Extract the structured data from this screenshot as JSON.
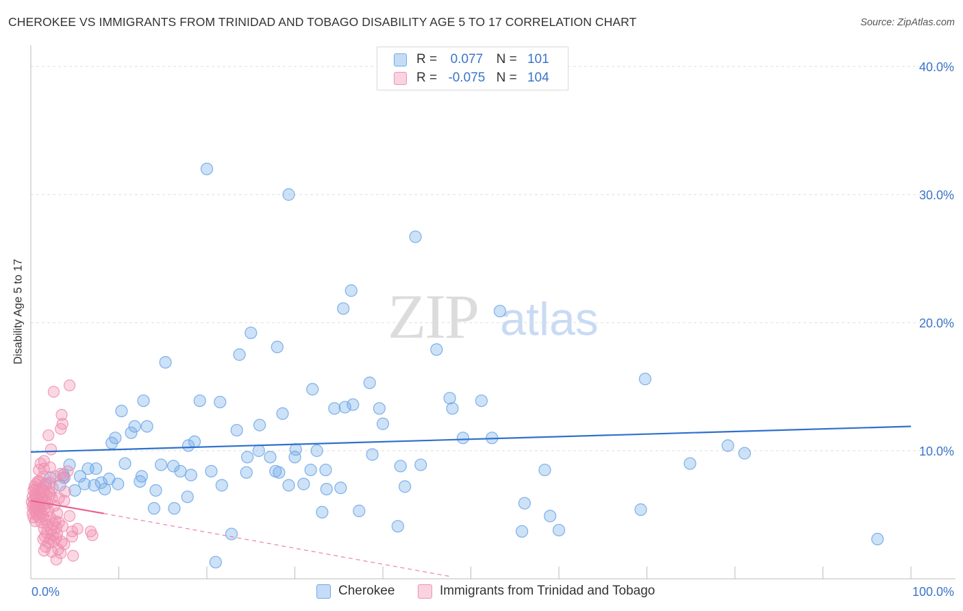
{
  "title": "CHEROKEE VS IMMIGRANTS FROM TRINIDAD AND TOBAGO DISABILITY AGE 5 TO 17 CORRELATION CHART",
  "source": "Source: ZipAtlas.com",
  "watermark": {
    "zip": "ZIP",
    "atlas": "atlas"
  },
  "legend": {
    "rows": [
      {
        "r_label": "R =",
        "r_value": "0.077",
        "n_label": "N =",
        "n_value": "101",
        "color": "#6fa8e8"
      },
      {
        "r_label": "R =",
        "r_value": "-0.075",
        "n_label": "N =",
        "n_value": "104",
        "color": "#f090b0"
      }
    ]
  },
  "bottom_legend": {
    "items": [
      {
        "label": "Cherokee",
        "color": "#6fa8e8"
      },
      {
        "label": "Immigrants from Trinidad and Tobago",
        "color": "#f090b0"
      }
    ]
  },
  "chart_data": {
    "type": "scatter",
    "title": "CHEROKEE VS IMMIGRANTS FROM TRINIDAD AND TOBAGO DISABILITY AGE 5 TO 17 CORRELATION CHART",
    "xlabel": "",
    "ylabel": "Disability Age 5 to 17",
    "xlim": [
      0,
      100
    ],
    "ylim": [
      0,
      40
    ],
    "x_tick_labels": [
      "0.0%",
      "100.0%"
    ],
    "y_ticks": [
      10,
      20,
      30,
      40
    ],
    "y_tick_labels": [
      "10.0%",
      "20.0%",
      "30.0%",
      "40.0%"
    ],
    "grid": true,
    "legend_position": "top-center",
    "series": [
      {
        "name": "Cherokee",
        "color": "#6fa8e8",
        "line_color": "#2e70cc",
        "trend": {
          "x": [
            0,
            100
          ],
          "y": [
            9.9,
            11.9
          ]
        },
        "trend_dashed": null,
        "points": [
          [
            20.0,
            32.0
          ],
          [
            29.3,
            30.0
          ],
          [
            43.7,
            26.7
          ],
          [
            36.4,
            22.5
          ],
          [
            35.5,
            21.1
          ],
          [
            53.3,
            20.9
          ],
          [
            25.0,
            19.2
          ],
          [
            28.0,
            18.1
          ],
          [
            46.1,
            17.9
          ],
          [
            23.7,
            17.5
          ],
          [
            15.3,
            16.9
          ],
          [
            69.8,
            15.6
          ],
          [
            38.5,
            15.3
          ],
          [
            32.0,
            14.8
          ],
          [
            47.6,
            14.1
          ],
          [
            12.8,
            13.9
          ],
          [
            19.2,
            13.9
          ],
          [
            21.5,
            13.8
          ],
          [
            51.2,
            13.9
          ],
          [
            36.6,
            13.6
          ],
          [
            35.7,
            13.4
          ],
          [
            34.5,
            13.3
          ],
          [
            39.6,
            13.3
          ],
          [
            47.9,
            13.3
          ],
          [
            10.3,
            13.1
          ],
          [
            28.6,
            12.9
          ],
          [
            26.0,
            12.0
          ],
          [
            40.0,
            12.1
          ],
          [
            13.2,
            11.9
          ],
          [
            11.8,
            11.9
          ],
          [
            23.4,
            11.6
          ],
          [
            11.4,
            11.4
          ],
          [
            9.6,
            11.0
          ],
          [
            49.1,
            11.0
          ],
          [
            52.4,
            11.0
          ],
          [
            9.2,
            10.6
          ],
          [
            18.6,
            10.7
          ],
          [
            17.9,
            10.4
          ],
          [
            79.2,
            10.4
          ],
          [
            25.9,
            10.0
          ],
          [
            30.1,
            10.1
          ],
          [
            32.5,
            10.0
          ],
          [
            81.1,
            9.8
          ],
          [
            30.0,
            9.5
          ],
          [
            24.6,
            9.5
          ],
          [
            27.2,
            9.5
          ],
          [
            38.8,
            9.7
          ],
          [
            10.7,
            9.0
          ],
          [
            4.4,
            8.9
          ],
          [
            74.9,
            9.0
          ],
          [
            14.8,
            8.9
          ],
          [
            16.2,
            8.8
          ],
          [
            42.0,
            8.8
          ],
          [
            7.4,
            8.6
          ],
          [
            31.8,
            8.5
          ],
          [
            33.5,
            8.5
          ],
          [
            17.0,
            8.4
          ],
          [
            20.5,
            8.4
          ],
          [
            24.5,
            8.3
          ],
          [
            28.2,
            8.3
          ],
          [
            58.4,
            8.5
          ],
          [
            3.7,
            8.1
          ],
          [
            2.2,
            7.9
          ],
          [
            3.8,
            7.9
          ],
          [
            8.9,
            7.8
          ],
          [
            12.4,
            7.6
          ],
          [
            6.1,
            7.4
          ],
          [
            8.0,
            7.5
          ],
          [
            3.3,
            7.3
          ],
          [
            21.7,
            7.3
          ],
          [
            7.2,
            7.3
          ],
          [
            29.3,
            7.3
          ],
          [
            35.2,
            7.1
          ],
          [
            42.5,
            7.2
          ],
          [
            5.0,
            6.9
          ],
          [
            8.4,
            7.0
          ],
          [
            14.2,
            6.9
          ],
          [
            33.6,
            7.0
          ],
          [
            17.8,
            6.4
          ],
          [
            56.1,
            5.9
          ],
          [
            14.0,
            5.5
          ],
          [
            16.3,
            5.5
          ],
          [
            33.1,
            5.2
          ],
          [
            37.3,
            5.3
          ],
          [
            69.3,
            5.4
          ],
          [
            59.0,
            4.9
          ],
          [
            41.7,
            4.1
          ],
          [
            60.0,
            3.8
          ],
          [
            55.8,
            3.7
          ],
          [
            22.8,
            3.5
          ],
          [
            96.2,
            3.1
          ],
          [
            21.0,
            1.3
          ],
          [
            27.8,
            8.4
          ],
          [
            44.3,
            8.9
          ],
          [
            31.0,
            7.4
          ],
          [
            6.5,
            8.6
          ],
          [
            1.7,
            7.4
          ],
          [
            18.2,
            8.1
          ],
          [
            12.6,
            8.0
          ],
          [
            9.9,
            7.4
          ],
          [
            5.6,
            8.0
          ]
        ]
      },
      {
        "name": "Immigrants from Trinidad and Tobago",
        "color": "#f090b0",
        "line_color": "#e8608f",
        "trend": {
          "x": [
            0,
            8.3
          ],
          "y": [
            6.1,
            5.1
          ]
        },
        "trend_dashed": {
          "x": [
            8.3,
            47.5
          ],
          "y": [
            5.1,
            0.2
          ]
        },
        "points": [
          [
            4.4,
            15.1
          ],
          [
            2.6,
            14.6
          ],
          [
            3.5,
            12.8
          ],
          [
            3.6,
            12.1
          ],
          [
            3.4,
            11.7
          ],
          [
            2.0,
            11.2
          ],
          [
            2.3,
            10.1
          ],
          [
            1.5,
            9.2
          ],
          [
            1.1,
            9.0
          ],
          [
            2.2,
            8.7
          ],
          [
            1.5,
            8.6
          ],
          [
            0.9,
            8.5
          ],
          [
            4.2,
            8.4
          ],
          [
            3.4,
            8.2
          ],
          [
            1.4,
            8.0
          ],
          [
            2.8,
            8.0
          ],
          [
            3.7,
            7.9
          ],
          [
            0.8,
            7.6
          ],
          [
            2.2,
            7.5
          ],
          [
            0.6,
            7.4
          ],
          [
            1.7,
            7.4
          ],
          [
            0.4,
            7.2
          ],
          [
            1.2,
            7.1
          ],
          [
            2.5,
            7.1
          ],
          [
            0.3,
            6.9
          ],
          [
            0.8,
            6.9
          ],
          [
            1.5,
            6.8
          ],
          [
            2.1,
            6.8
          ],
          [
            3.9,
            6.8
          ],
          [
            0.5,
            6.6
          ],
          [
            1.0,
            6.6
          ],
          [
            1.8,
            6.5
          ],
          [
            0.2,
            6.4
          ],
          [
            0.7,
            6.4
          ],
          [
            1.3,
            6.3
          ],
          [
            2.4,
            6.3
          ],
          [
            3.2,
            6.3
          ],
          [
            0.4,
            6.2
          ],
          [
            0.9,
            6.1
          ],
          [
            1.6,
            6.1
          ],
          [
            3.8,
            6.1
          ],
          [
            0.1,
            6.0
          ],
          [
            0.6,
            5.9
          ],
          [
            1.1,
            5.9
          ],
          [
            1.9,
            5.9
          ],
          [
            0.3,
            5.8
          ],
          [
            0.8,
            5.7
          ],
          [
            1.4,
            5.7
          ],
          [
            2.7,
            5.7
          ],
          [
            0.2,
            5.6
          ],
          [
            0.5,
            5.6
          ],
          [
            1.0,
            5.5
          ],
          [
            1.6,
            5.5
          ],
          [
            0.4,
            5.4
          ],
          [
            0.9,
            5.3
          ],
          [
            2.0,
            5.3
          ],
          [
            0.6,
            5.2
          ],
          [
            1.2,
            5.1
          ],
          [
            3.0,
            5.1
          ],
          [
            0.7,
            5.0
          ],
          [
            1.4,
            4.9
          ],
          [
            4.4,
            4.9
          ],
          [
            0.3,
            4.8
          ],
          [
            0.9,
            4.8
          ],
          [
            2.2,
            4.8
          ],
          [
            1.7,
            4.6
          ],
          [
            0.5,
            4.5
          ],
          [
            2.8,
            4.5
          ],
          [
            1.2,
            4.4
          ],
          [
            3.2,
            4.4
          ],
          [
            2.5,
            4.3
          ],
          [
            1.9,
            4.2
          ],
          [
            3.6,
            4.1
          ],
          [
            2.9,
            4.0
          ],
          [
            1.5,
            3.9
          ],
          [
            5.3,
            3.9
          ],
          [
            2.3,
            3.8
          ],
          [
            6.8,
            3.7
          ],
          [
            4.7,
            3.7
          ],
          [
            1.8,
            3.6
          ],
          [
            3.0,
            3.5
          ],
          [
            7.0,
            3.4
          ],
          [
            2.5,
            3.4
          ],
          [
            1.6,
            3.3
          ],
          [
            4.7,
            3.3
          ],
          [
            2.9,
            3.2
          ],
          [
            2.2,
            3.1
          ],
          [
            1.4,
            3.1
          ],
          [
            2.6,
            2.9
          ],
          [
            3.5,
            2.9
          ],
          [
            2.0,
            2.8
          ],
          [
            3.8,
            2.7
          ],
          [
            1.7,
            2.5
          ],
          [
            3.1,
            2.3
          ],
          [
            1.5,
            2.2
          ],
          [
            2.4,
            2.1
          ],
          [
            3.4,
            2.0
          ],
          [
            4.8,
            1.8
          ],
          [
            2.9,
            1.5
          ],
          [
            0.5,
            7.0
          ],
          [
            1.3,
            6.9
          ],
          [
            0.2,
            5.1
          ],
          [
            2.2,
            6.6
          ],
          [
            1.0,
            7.6
          ]
        ]
      }
    ]
  }
}
